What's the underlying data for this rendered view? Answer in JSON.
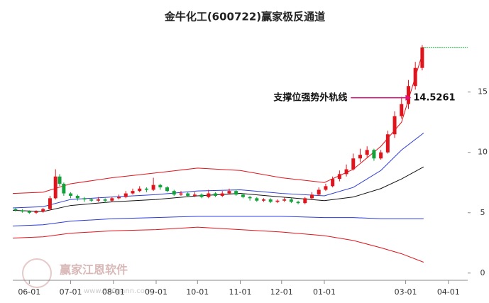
{
  "chart_data": {
    "type": "candlestick",
    "title": "金牛化工(600722)赢家极反通道",
    "watermark": "赢家江恩软件",
    "watermark_url": "www.360gann.com",
    "xlim": [
      -12,
      318
    ],
    "ylim": [
      -0.6,
      19.1
    ],
    "yticks": [
      0,
      5,
      10,
      15
    ],
    "xticks": [
      {
        "value": 0,
        "label": "06-01"
      },
      {
        "value": 30,
        "label": "07-01"
      },
      {
        "value": 61,
        "label": "08-01"
      },
      {
        "value": 92,
        "label": "09-01"
      },
      {
        "value": 122,
        "label": "10-01"
      },
      {
        "value": 153,
        "label": "11-01"
      },
      {
        "value": 183,
        "label": "12-01"
      },
      {
        "value": 214,
        "label": "01-01"
      },
      {
        "value": 273,
        "label": "03-01"
      },
      {
        "value": 304,
        "label": "04-01"
      }
    ],
    "up_color": "#e0141c",
    "down_color": "#11a33a",
    "x": [
      -10,
      -5,
      0,
      5,
      10,
      15,
      19,
      22,
      25,
      30,
      35,
      40,
      45,
      50,
      55,
      60,
      65,
      70,
      75,
      80,
      85,
      90,
      95,
      100,
      105,
      110,
      115,
      120,
      125,
      130,
      135,
      140,
      145,
      150,
      155,
      160,
      165,
      170,
      175,
      180,
      185,
      190,
      195,
      200,
      205,
      210,
      215,
      220,
      225,
      230,
      235,
      240,
      245,
      250,
      255,
      260,
      265,
      270,
      275,
      280,
      285
    ],
    "open": [
      5.3,
      5.2,
      5.1,
      5.0,
      5.1,
      5.3,
      6.2,
      8.0,
      7.4,
      6.6,
      6.4,
      6.2,
      6.1,
      6.0,
      6.1,
      6.0,
      6.2,
      6.3,
      6.6,
      6.8,
      7.0,
      6.9,
      7.3,
      7.1,
      6.8,
      6.5,
      6.6,
      6.4,
      6.5,
      6.3,
      6.6,
      6.4,
      6.6,
      6.8,
      6.5,
      6.3,
      6.2,
      6.0,
      6.1,
      5.9,
      6.0,
      6.1,
      5.9,
      5.8,
      6.2,
      6.5,
      6.9,
      7.2,
      7.8,
      8.2,
      8.6,
      9.5,
      9.8,
      10.2,
      9.5,
      10.0,
      11.5,
      13.0,
      14.0,
      15.5,
      17.0
    ],
    "high": [
      5.4,
      5.3,
      5.2,
      5.2,
      5.4,
      6.4,
      8.6,
      8.2,
      7.5,
      6.7,
      6.5,
      6.3,
      6.2,
      6.3,
      6.2,
      6.3,
      6.5,
      6.8,
      7.0,
      7.2,
      7.1,
      7.9,
      7.4,
      7.2,
      6.9,
      6.8,
      6.7,
      6.7,
      6.6,
      6.9,
      6.7,
      6.8,
      7.0,
      6.9,
      6.6,
      6.4,
      6.3,
      6.2,
      6.2,
      6.1,
      6.3,
      6.2,
      6.0,
      6.3,
      6.7,
      7.1,
      7.4,
      8.0,
      8.5,
      9.0,
      9.9,
      10.3,
      10.5,
      10.3,
      10.2,
      11.8,
      13.4,
      14.6,
      16.0,
      17.5,
      18.9
    ],
    "low": [
      5.1,
      5.0,
      4.9,
      4.9,
      5.0,
      5.2,
      6.1,
      7.2,
      6.4,
      6.2,
      6.0,
      5.9,
      5.9,
      5.9,
      5.8,
      5.9,
      6.1,
      6.2,
      6.5,
      6.7,
      6.7,
      6.8,
      6.9,
      6.7,
      6.4,
      6.4,
      6.3,
      6.3,
      6.2,
      6.2,
      6.3,
      6.3,
      6.5,
      6.4,
      6.2,
      6.0,
      5.9,
      5.9,
      5.8,
      5.8,
      5.9,
      5.8,
      5.7,
      5.7,
      6.1,
      6.4,
      6.8,
      7.1,
      7.6,
      8.0,
      8.5,
      9.2,
      9.6,
      9.3,
      9.4,
      9.9,
      11.2,
      12.8,
      13.6,
      15.2,
      16.8
    ],
    "close": [
      5.2,
      5.1,
      5.0,
      5.1,
      5.3,
      6.2,
      8.0,
      7.4,
      6.6,
      6.4,
      6.2,
      6.1,
      6.0,
      6.1,
      6.0,
      6.2,
      6.3,
      6.6,
      6.8,
      7.0,
      6.9,
      7.3,
      7.1,
      6.8,
      6.5,
      6.6,
      6.4,
      6.5,
      6.3,
      6.6,
      6.4,
      6.6,
      6.8,
      6.5,
      6.3,
      6.2,
      6.0,
      6.1,
      5.9,
      6.0,
      6.1,
      5.9,
      5.8,
      6.2,
      6.5,
      6.9,
      7.2,
      7.8,
      8.2,
      8.6,
      9.5,
      9.8,
      10.2,
      9.5,
      10.0,
      11.5,
      13.0,
      14.0,
      15.5,
      17.0,
      18.7
    ],
    "channel_x": [
      -12,
      10,
      30,
      60,
      92,
      122,
      153,
      183,
      214,
      235,
      255,
      270,
      286
    ],
    "channels": [
      {
        "color": "#e0141c",
        "values": [
          6.6,
          6.7,
          7.4,
          7.9,
          8.3,
          8.7,
          8.5,
          7.9,
          7.5,
          8.6,
          10.5,
          12.5,
          18.5
        ]
      },
      {
        "color": "#2b3bd6",
        "values": [
          5.4,
          5.5,
          6.1,
          6.3,
          6.5,
          6.8,
          6.9,
          6.6,
          6.4,
          7.1,
          8.5,
          10.2,
          11.6
        ]
      },
      {
        "color": "#111111",
        "values": [
          5.2,
          5.1,
          5.6,
          5.9,
          6.1,
          6.4,
          6.6,
          6.3,
          6.0,
          6.3,
          7.0,
          7.8,
          8.8
        ]
      },
      {
        "color": "#2b3bd6",
        "values": [
          3.9,
          4.0,
          4.3,
          4.5,
          4.6,
          4.7,
          4.7,
          4.7,
          4.6,
          4.6,
          4.5,
          4.5,
          4.5
        ]
      },
      {
        "color": "#e0141c",
        "values": [
          2.9,
          3.0,
          3.3,
          3.5,
          3.6,
          3.8,
          3.6,
          3.4,
          3.1,
          2.7,
          2.1,
          1.6,
          0.9
        ]
      }
    ],
    "annotation": {
      "text": "支撑位强势外轨线",
      "value": 14.5261,
      "x": 277,
      "color": "#e0147c"
    }
  }
}
